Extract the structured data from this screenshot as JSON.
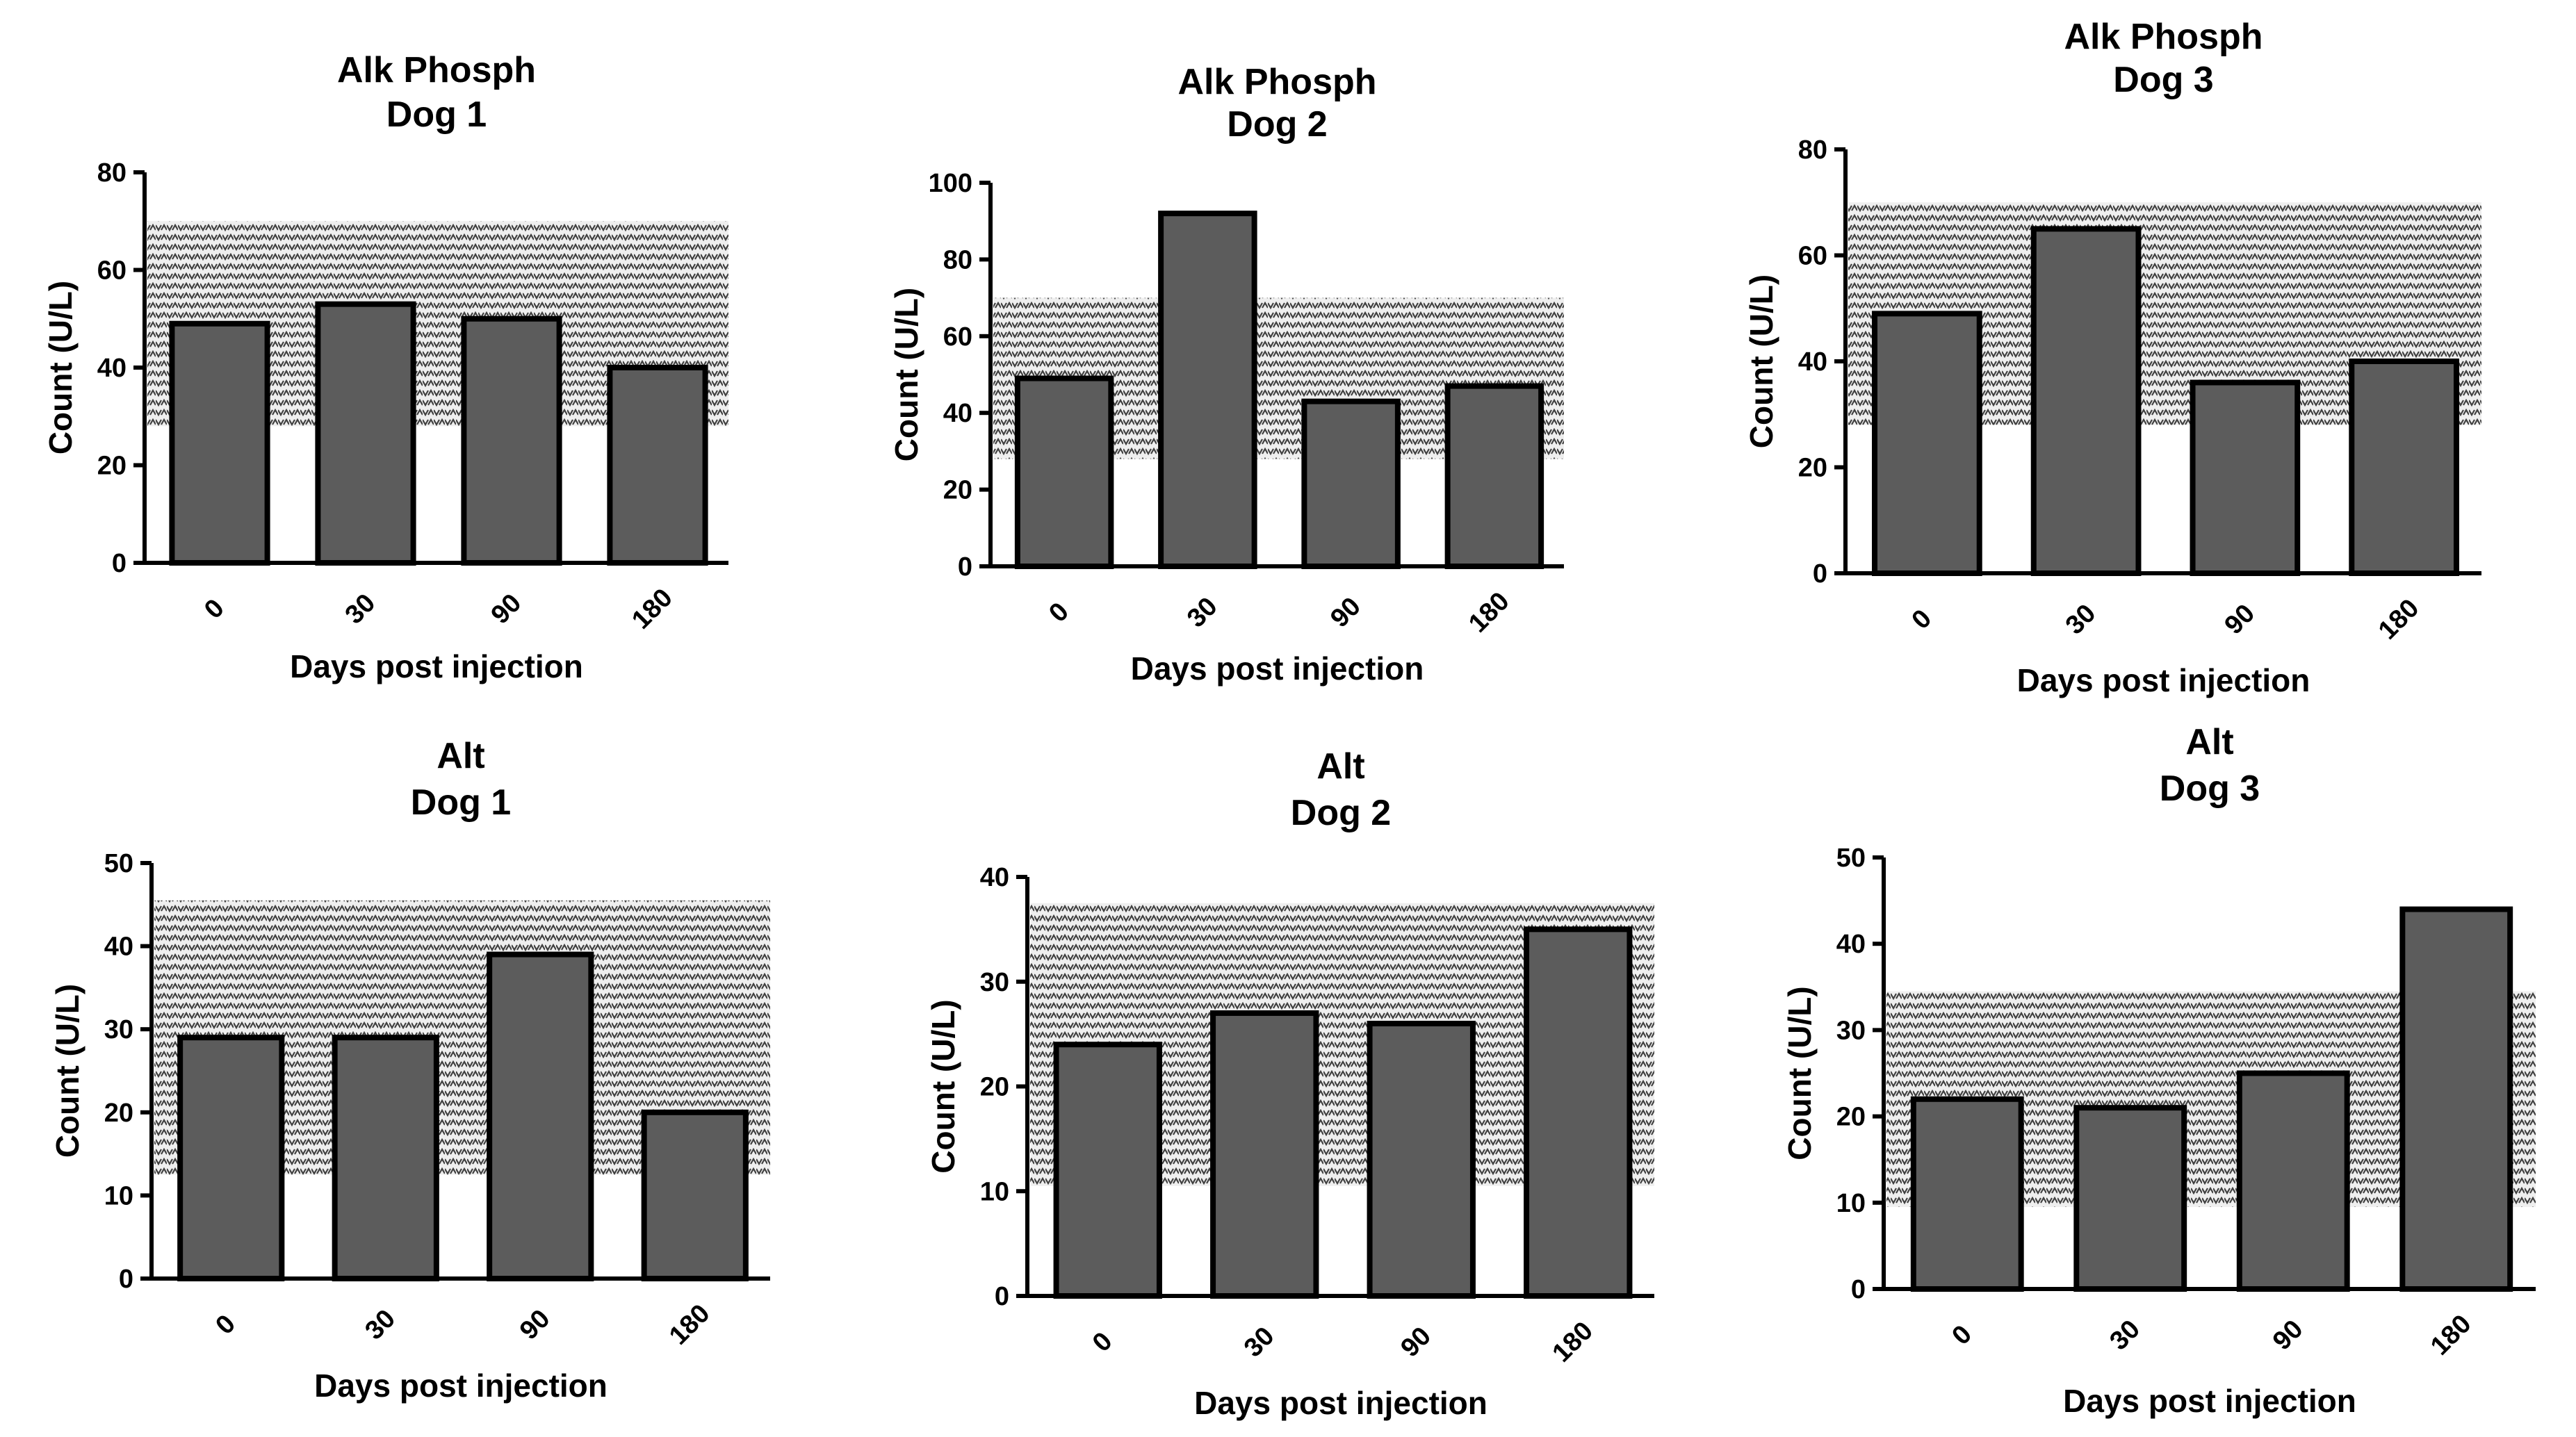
{
  "chart_data": [
    {
      "type": "bar",
      "title": [
        "Alk Phosph",
        "Dog 1"
      ],
      "xlabel": "Days post injection",
      "ylabel": "Count (U/L)",
      "categories": [
        "0",
        "30",
        "90",
        "180"
      ],
      "values": [
        49,
        53,
        50,
        40
      ],
      "ylim": [
        0,
        80
      ],
      "yticks": [
        0,
        20,
        40,
        60,
        80
      ],
      "reference_range": [
        28,
        70
      ],
      "grid": false,
      "legend": "none"
    },
    {
      "type": "bar",
      "title": [
        "Alk Phosph",
        "Dog 2"
      ],
      "xlabel": "Days post injection",
      "ylabel": "Count (U/L)",
      "categories": [
        "0",
        "30",
        "90",
        "180"
      ],
      "values": [
        49,
        92,
        43,
        47
      ],
      "ylim": [
        0,
        100
      ],
      "yticks": [
        0,
        20,
        40,
        60,
        80,
        100
      ],
      "reference_range": [
        28,
        70
      ],
      "grid": false,
      "legend": "none"
    },
    {
      "type": "bar",
      "title": [
        "Alk Phosph",
        "Dog 3"
      ],
      "xlabel": "Days post injection",
      "ylabel": "Count (U/L)",
      "categories": [
        "0",
        "30",
        "90",
        "180"
      ],
      "values": [
        49,
        65,
        36,
        40
      ],
      "ylim": [
        0,
        80
      ],
      "yticks": [
        0,
        20,
        40,
        60,
        80
      ],
      "reference_range": [
        28,
        70
      ],
      "grid": false,
      "legend": "none"
    },
    {
      "type": "bar",
      "title": [
        "Alt",
        "Dog 1"
      ],
      "xlabel": "Days post injection",
      "ylabel": "Count (U/L)",
      "categories": [
        "0",
        "30",
        "90",
        "180"
      ],
      "values": [
        29,
        29,
        39,
        20
      ],
      "ylim": [
        0,
        50
      ],
      "yticks": [
        0,
        10,
        20,
        30,
        40,
        50
      ],
      "reference_range": [
        12.5,
        45.5
      ],
      "grid": false,
      "legend": "none"
    },
    {
      "type": "bar",
      "title": [
        "Alt",
        "Dog 2"
      ],
      "xlabel": "Days post injection",
      "ylabel": "Count (U/L)",
      "categories": [
        "0",
        "30",
        "90",
        "180"
      ],
      "values": [
        24,
        27,
        26,
        35
      ],
      "ylim": [
        0,
        40
      ],
      "yticks": [
        0,
        10,
        20,
        30,
        40
      ],
      "reference_range": [
        10.5,
        37.5
      ],
      "grid": false,
      "legend": "none"
    },
    {
      "type": "bar",
      "title": [
        "Alt",
        "Dog 3"
      ],
      "xlabel": "Days post injection",
      "ylabel": "Count (U/L)",
      "categories": [
        "0",
        "30",
        "90",
        "180"
      ],
      "values": [
        22,
        21,
        25,
        44
      ],
      "ylim": [
        0,
        50
      ],
      "yticks": [
        0,
        10,
        20,
        30,
        40,
        50
      ],
      "reference_range": [
        9.5,
        34.5
      ],
      "grid": false,
      "legend": "none"
    }
  ]
}
